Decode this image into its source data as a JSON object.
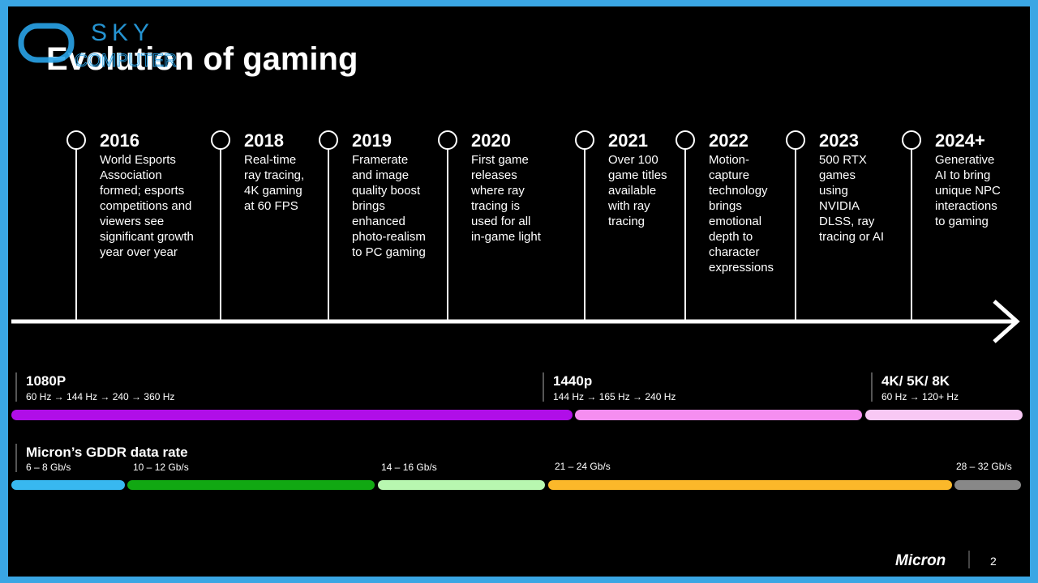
{
  "watermark": {
    "brand": "SKY",
    "sub": "COMPUTER"
  },
  "title": "Evolution of gaming",
  "timeline": [
    {
      "year": "2016",
      "lines": [
        "World Esports",
        "Association",
        "formed; esports",
        "competitions and",
        "viewers see",
        "significant growth",
        "year over year"
      ]
    },
    {
      "year": "2018",
      "lines": [
        "Real-time",
        "ray tracing,",
        "4K gaming",
        "at 60 FPS"
      ]
    },
    {
      "year": "2019",
      "lines": [
        "Framerate",
        "and image",
        "quality boost",
        "brings",
        "enhanced",
        "photo-realism",
        "to PC gaming"
      ]
    },
    {
      "year": "2020",
      "lines": [
        "First game",
        "releases",
        "where ray",
        "tracing is",
        "used for all",
        "in-game light"
      ]
    },
    {
      "year": "2021",
      "lines": [
        "Over 100",
        "game titles",
        "available",
        "with ray",
        "tracing"
      ]
    },
    {
      "year": "2022",
      "lines": [
        "Motion-",
        "capture",
        "technology",
        "brings",
        "emotional",
        "depth to",
        "character",
        "expressions"
      ]
    },
    {
      "year": "2023",
      "lines": [
        "500 RTX",
        "games",
        "using",
        "NVIDIA",
        "DLSS, ray",
        "tracing or AI"
      ]
    },
    {
      "year": "2024+",
      "lines": [
        "Generative",
        "AI to bring",
        "unique NPC",
        "interactions",
        "to gaming"
      ]
    }
  ],
  "resolutions": [
    {
      "label": "1080P",
      "rates": "60 Hz → 144 Hz → 240 → 360 Hz"
    },
    {
      "label": "1440p",
      "rates": "144 Hz → 165 Hz → 240 Hz"
    },
    {
      "label": "4K/ 5K/ 8K",
      "rates": "60 Hz → 120+ Hz"
    }
  ],
  "gddr": {
    "title": "Micron’s GDDR data rate",
    "rates": [
      "6 – 8 Gb/s",
      "10 – 12 Gb/s",
      "14 – 16 Gb/s",
      "21 – 24 Gb/s",
      "28 – 32 Gb/s"
    ]
  },
  "footer": {
    "logo": "Micron",
    "page": "2"
  }
}
